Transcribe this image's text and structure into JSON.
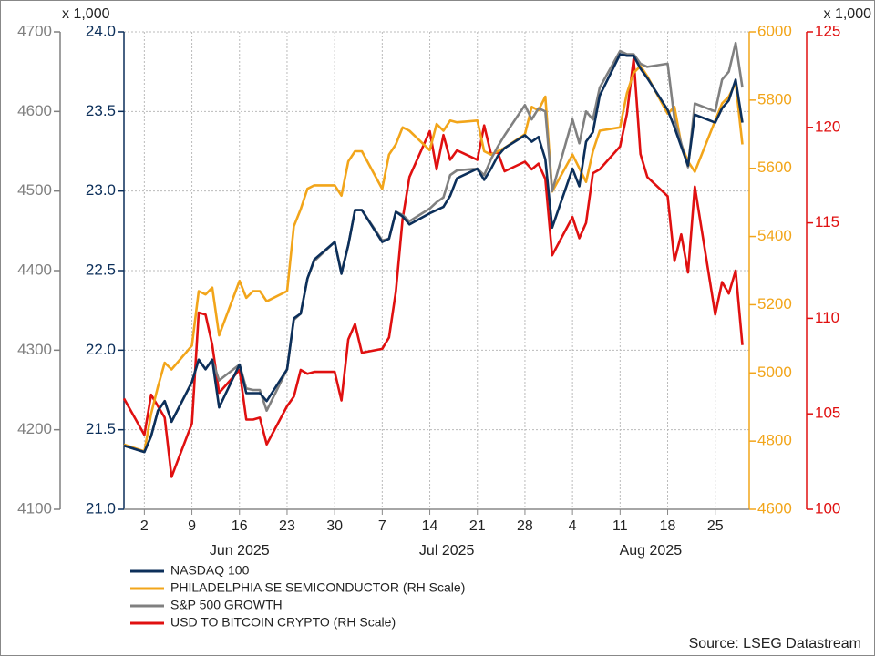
{
  "chart_data": {
    "type": "line",
    "ylabel": "x 1,000",
    "y4label": "x 1,000",
    "source": "Source: LSEG Datastream",
    "grid": true,
    "xlim": [
      "2025-05-30",
      "2025-08-30"
    ],
    "xticks": [
      {
        "value": "2025-06-02",
        "label": "2"
      },
      {
        "value": "2025-06-09",
        "label": "9"
      },
      {
        "value": "2025-06-16",
        "label": "16"
      },
      {
        "value": "2025-06-23",
        "label": "23"
      },
      {
        "value": "2025-06-30",
        "label": "30"
      },
      {
        "value": "2025-07-07",
        "label": "7"
      },
      {
        "value": "2025-07-14",
        "label": "14"
      },
      {
        "value": "2025-07-21",
        "label": "21"
      },
      {
        "value": "2025-07-28",
        "label": "28"
      },
      {
        "value": "2025-08-04",
        "label": "4"
      },
      {
        "value": "2025-08-11",
        "label": "11"
      },
      {
        "value": "2025-08-18",
        "label": "18"
      },
      {
        "value": "2025-08-25",
        "label": "25"
      }
    ],
    "month_labels": [
      {
        "value": "2025-06",
        "label": "Jun 2025"
      },
      {
        "value": "2025-07",
        "label": "Jul 2025"
      },
      {
        "value": "2025-08",
        "label": "Aug 2025"
      }
    ],
    "ylim": [
      21,
      24
    ],
    "yticks": [
      {
        "value": 21,
        "label": "21.0"
      },
      {
        "value": 21.5,
        "label": "21.5"
      },
      {
        "value": 22,
        "label": "22.0"
      },
      {
        "value": 22.5,
        "label": "22.5"
      },
      {
        "value": 23,
        "label": "23.0"
      },
      {
        "value": 23.5,
        "label": "23.5"
      },
      {
        "value": 24,
        "label": "24.0"
      }
    ],
    "y3lim": [
      4100,
      4700
    ],
    "y3ticks": [
      4100,
      4200,
      4300,
      4400,
      4500,
      4600,
      4700
    ],
    "y2lim": [
      4600,
      6000
    ],
    "y2ticks": [
      4600,
      4800,
      5000,
      5200,
      5400,
      5600,
      5800,
      6000
    ],
    "y4lim": [
      100,
      125
    ],
    "y4ticks": [
      100,
      105,
      110,
      115,
      120,
      125
    ],
    "x": [
      "2025-05-30",
      "2025-06-02",
      "2025-06-03",
      "2025-06-04",
      "2025-06-05",
      "2025-06-06",
      "2025-06-09",
      "2025-06-10",
      "2025-06-11",
      "2025-06-12",
      "2025-06-13",
      "2025-06-16",
      "2025-06-17",
      "2025-06-18",
      "2025-06-19",
      "2025-06-20",
      "2025-06-23",
      "2025-06-24",
      "2025-06-25",
      "2025-06-26",
      "2025-06-27",
      "2025-06-30",
      "2025-07-01",
      "2025-07-02",
      "2025-07-03",
      "2025-07-04",
      "2025-07-07",
      "2025-07-08",
      "2025-07-09",
      "2025-07-10",
      "2025-07-11",
      "2025-07-14",
      "2025-07-15",
      "2025-07-16",
      "2025-07-17",
      "2025-07-18",
      "2025-07-21",
      "2025-07-22",
      "2025-07-23",
      "2025-07-24",
      "2025-07-25",
      "2025-07-28",
      "2025-07-29",
      "2025-07-30",
      "2025-07-31",
      "2025-08-01",
      "2025-08-04",
      "2025-08-05",
      "2025-08-06",
      "2025-08-07",
      "2025-08-08",
      "2025-08-11",
      "2025-08-12",
      "2025-08-13",
      "2025-08-14",
      "2025-08-15",
      "2025-08-18",
      "2025-08-19",
      "2025-08-20",
      "2025-08-21",
      "2025-08-22",
      "2025-08-25",
      "2025-08-26",
      "2025-08-27",
      "2025-08-28",
      "2025-08-29"
    ],
    "series": [
      {
        "name": "NASDAQ 100",
        "color": "#0c2f5a",
        "axis": "y",
        "values": [
          21.4,
          21.36,
          21.46,
          21.62,
          21.68,
          21.55,
          21.8,
          21.94,
          21.88,
          21.94,
          21.64,
          21.91,
          21.73,
          21.73,
          21.73,
          21.68,
          21.88,
          22.2,
          22.23,
          22.45,
          22.57,
          22.68,
          22.48,
          22.66,
          22.88,
          22.88,
          22.68,
          22.7,
          22.87,
          22.84,
          22.79,
          22.86,
          22.88,
          22.9,
          22.97,
          23.08,
          23.14,
          23.07,
          23.14,
          23.22,
          23.27,
          23.35,
          23.31,
          23.34,
          23.2,
          22.77,
          23.14,
          23.03,
          23.31,
          23.37,
          23.6,
          23.86,
          23.85,
          23.85,
          23.77,
          23.71,
          23.51,
          23.4,
          23.28,
          23.16,
          23.48,
          23.43,
          23.52,
          23.57,
          23.7,
          23.43
        ]
      },
      {
        "name": "PHILADELPHIA SE SEMICONDUCTOR (RH Scale)",
        "color": "#f2a51a",
        "axis": "y2",
        "values": [
          4790,
          4770,
          4880,
          4960,
          5030,
          5010,
          5080,
          5240,
          5230,
          5250,
          5110,
          5270,
          5220,
          5240,
          5240,
          5210,
          5240,
          5430,
          5480,
          5540,
          5550,
          5550,
          5520,
          5620,
          5650,
          5650,
          5540,
          5640,
          5670,
          5720,
          5710,
          5653,
          5730,
          5710,
          5740,
          5735,
          5740,
          5650,
          5640,
          5650,
          5660,
          5700,
          5780,
          5770,
          5810,
          5532,
          5640,
          5600,
          5560,
          5650,
          5710,
          5720,
          5820,
          5880,
          5900,
          5870,
          5760,
          5780,
          5670,
          5620,
          5590,
          5740,
          5790,
          5810,
          5850,
          5670
        ]
      },
      {
        "name": "S&P 500 GROWTH",
        "color": "#808080",
        "axis": "y3",
        "values": [
          4180,
          4172,
          4192,
          4224,
          4236,
          4210,
          4260,
          4288,
          4276,
          4288,
          4262,
          4282,
          4252,
          4250,
          4250,
          4224,
          4276,
          4338,
          4346,
          4390,
          4412,
          4436,
          4398,
          4432,
          4476,
          4476,
          4438,
          4440,
          4474,
          4470,
          4462,
          4478,
          4486,
          4492,
          4520,
          4526,
          4528,
          4520,
          4540,
          4556,
          4570,
          4608,
          4590,
          4604,
          4600,
          4500,
          4590,
          4560,
          4600,
          4590,
          4630,
          4676,
          4672,
          4672,
          4660,
          4656,
          4660,
          4590,
          4560,
          4530,
          4610,
          4600,
          4640,
          4650,
          4686,
          4630
        ]
      },
      {
        "name": "USD TO BITCOIN CRYPTO (RH Scale)",
        "color": "#e01010",
        "axis": "y4",
        "values": [
          105.8,
          103.9,
          106.0,
          105.4,
          104.8,
          101.7,
          104.5,
          110.3,
          110.2,
          108.6,
          106.1,
          107.3,
          104.7,
          104.7,
          104.8,
          103.4,
          105.4,
          105.9,
          107.3,
          107.1,
          107.2,
          107.2,
          105.7,
          108.9,
          109.7,
          108.2,
          108.4,
          109.0,
          111.4,
          115.2,
          117.4,
          119.8,
          117.8,
          119.6,
          118.3,
          118.8,
          118.3,
          120.1,
          118.6,
          118.7,
          117.7,
          118.2,
          117.8,
          118.1,
          117.3,
          113.3,
          115.3,
          114.2,
          115.0,
          117.6,
          117.8,
          119.0,
          120.7,
          123.6,
          118.6,
          117.4,
          116.4,
          113.0,
          114.4,
          112.4,
          116.9,
          110.2,
          111.9,
          111.3,
          112.5,
          108.6
        ]
      }
    ]
  }
}
